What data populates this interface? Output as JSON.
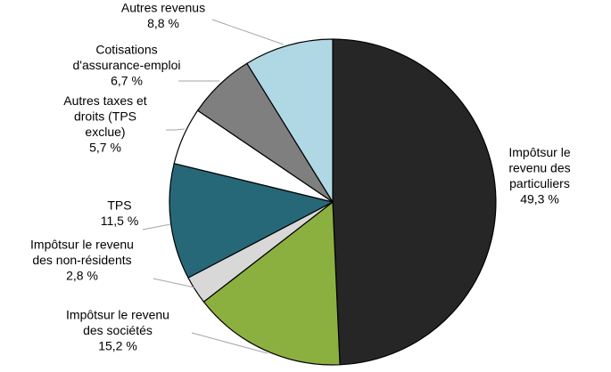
{
  "chart_data": {
    "type": "pie",
    "unit": "%",
    "slices": [
      {
        "name": "Impôt sur le revenu des particuliers",
        "value": 49.3,
        "color": "#262626",
        "label_lines": [
          "Impôtsur le",
          "revenu des",
          "particuliers",
          "49,3 %"
        ]
      },
      {
        "name": "Impôt sur le revenu des sociétés",
        "value": 15.2,
        "color": "#8cb040",
        "label_lines": [
          "Impôtsur le revenu",
          "des sociétés",
          "15,2 %"
        ]
      },
      {
        "name": "Impôt sur le revenu des non-résidents",
        "value": 2.8,
        "color": "#d8d8d8",
        "label_lines": [
          "Impôtsur le revenu",
          "des non-résidents",
          "2,8 %"
        ]
      },
      {
        "name": "TPS",
        "value": 11.5,
        "color": "#276878",
        "label_lines": [
          "TPS",
          "11,5 %"
        ]
      },
      {
        "name": "Autres taxes et droits (TPS exclue)",
        "value": 5.7,
        "color": "#ffffff",
        "label_lines": [
          "Autres taxes et",
          "droits (TPS",
          "exclue)",
          "5,7 %"
        ]
      },
      {
        "name": "Cotisations d'assurance-emploi",
        "value": 6.7,
        "color": "#7f7f7f",
        "label_lines": [
          "Cotisations",
          "d'assurance-emploi",
          "6,7 %"
        ]
      },
      {
        "name": "Autres revenus",
        "value": 8.8,
        "color": "#b0d8e4",
        "label_lines": [
          "Autres revenus",
          "8,8 %"
        ]
      }
    ]
  }
}
